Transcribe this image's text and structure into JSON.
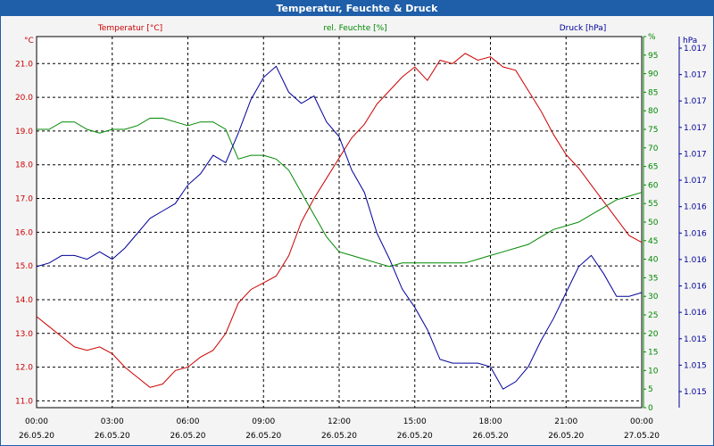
{
  "window": {
    "title": "Temperatur, Feuchte & Druck"
  },
  "colors": {
    "temperature": "#cc0000",
    "humidity": "#008800",
    "pressure": "#000099",
    "titlebar": "#1f5ea8",
    "grid": "#000000"
  },
  "chart_data": {
    "type": "line",
    "title": "Temperatur, Feuchte & Druck",
    "grid": true,
    "x": {
      "ticks": [
        {
          "time": "00:00",
          "date": "26.05.20"
        },
        {
          "time": "03:00",
          "date": "26.05.20"
        },
        {
          "time": "06:00",
          "date": "26.05.20"
        },
        {
          "time": "09:00",
          "date": "26.05.20"
        },
        {
          "time": "12:00",
          "date": "26.05.20"
        },
        {
          "time": "15:00",
          "date": "26.05.20"
        },
        {
          "time": "18:00",
          "date": "26.05.20"
        },
        {
          "time": "21:00",
          "date": "26.05.20"
        },
        {
          "time": "00:00",
          "date": "27.05.20"
        }
      ],
      "range_hours": [
        0,
        24
      ]
    },
    "axes": {
      "temperature": {
        "unit": "°C",
        "label": "Temperatur [°C]",
        "ylim": [
          10.8,
          21.8
        ],
        "ticks": [
          "11.0",
          "12.0",
          "13.0",
          "14.0",
          "15.0",
          "16.0",
          "17.0",
          "18.0",
          "19.0",
          "20.0",
          "21.0"
        ]
      },
      "humidity": {
        "unit": "%",
        "label": "rel. Feuchte [%]",
        "ylim": [
          0,
          100
        ],
        "ticks": [
          "0",
          "5",
          "10",
          "15",
          "20",
          "25",
          "30",
          "35",
          "40",
          "45",
          "50",
          "55",
          "60",
          "65",
          "70",
          "75",
          "80",
          "85",
          "90",
          "95",
          "%"
        ]
      },
      "pressure": {
        "unit": "hPa",
        "label": "Druck [hPa]",
        "ticks": [
          "1.015",
          "1.015",
          "1.015",
          "1.016",
          "1.016",
          "1.016",
          "1.016",
          "1.016",
          "1.017",
          "1.017",
          "1.017",
          "1.017",
          "1.017",
          "1.017"
        ]
      }
    },
    "series": [
      {
        "name": "Temperatur [°C]",
        "axis": "temperature",
        "hours": [
          0,
          0.5,
          1,
          1.5,
          2,
          2.5,
          3,
          3.5,
          4,
          4.5,
          5,
          5.5,
          6,
          6.5,
          7,
          7.5,
          8,
          8.5,
          9,
          9.5,
          10,
          10.5,
          11,
          11.5,
          12,
          12.5,
          13,
          13.5,
          14,
          14.5,
          15,
          15.5,
          16,
          16.5,
          17,
          17.5,
          18,
          18.5,
          19,
          19.5,
          20,
          20.5,
          21,
          21.5,
          22,
          22.5,
          23,
          23.5,
          24
        ],
        "values": [
          13.5,
          13.2,
          12.9,
          12.6,
          12.5,
          12.6,
          12.4,
          12.0,
          11.7,
          11.4,
          11.5,
          11.9,
          12.0,
          12.3,
          12.5,
          13.0,
          13.9,
          14.3,
          14.5,
          14.7,
          15.3,
          16.3,
          17.0,
          17.6,
          18.2,
          18.8,
          19.2,
          19.8,
          20.2,
          20.6,
          20.9,
          20.5,
          21.1,
          21.0,
          21.3,
          21.1,
          21.2,
          20.9,
          20.8,
          20.2,
          19.6,
          18.9,
          18.3,
          17.9,
          17.4,
          16.9,
          16.4,
          15.9,
          15.7
        ]
      },
      {
        "name": "rel. Feuchte [%]",
        "axis": "humidity",
        "hours": [
          0,
          0.5,
          1,
          1.5,
          2,
          2.5,
          3,
          3.5,
          4,
          4.5,
          5,
          5.5,
          6,
          6.5,
          7,
          7.5,
          8,
          8.5,
          9,
          9.5,
          10,
          10.5,
          11,
          11.5,
          12,
          12.5,
          13,
          13.5,
          14,
          14.5,
          15,
          15.5,
          16,
          16.5,
          17,
          17.5,
          18,
          18.5,
          19,
          19.5,
          20,
          20.5,
          21,
          21.5,
          22,
          22.5,
          23,
          23.5,
          24
        ],
        "values": [
          75,
          75,
          77,
          77,
          75,
          74,
          75,
          75,
          76,
          78,
          78,
          77,
          76,
          77,
          77,
          75,
          67,
          68,
          68,
          67,
          64,
          58,
          52,
          46,
          42,
          41,
          40,
          39,
          38,
          39,
          39,
          39,
          39,
          39,
          39,
          40,
          41,
          42,
          43,
          44,
          46,
          48,
          49,
          50,
          52,
          54,
          56,
          57,
          58
        ]
      },
      {
        "name": "Druck [hPa]",
        "axis": "pressure",
        "hours": [
          0,
          0.5,
          1,
          1.5,
          2,
          2.5,
          3,
          3.5,
          4,
          4.5,
          5,
          5.5,
          6,
          6.5,
          7,
          7.5,
          8,
          8.5,
          9,
          9.5,
          10,
          10.5,
          11,
          11.5,
          12,
          12.5,
          13,
          13.5,
          14,
          14.5,
          15,
          15.5,
          16,
          16.5,
          17,
          17.5,
          18,
          18.5,
          19,
          19.5,
          20,
          20.5,
          21,
          21.5,
          22,
          22.5,
          23,
          23.5,
          24
        ],
        "plot_fraction_from_bottom": [
          0.38,
          0.39,
          0.41,
          0.41,
          0.4,
          0.42,
          0.4,
          0.43,
          0.47,
          0.51,
          0.53,
          0.55,
          0.6,
          0.63,
          0.68,
          0.66,
          0.74,
          0.83,
          0.89,
          0.92,
          0.85,
          0.82,
          0.84,
          0.77,
          0.73,
          0.64,
          0.58,
          0.47,
          0.4,
          0.32,
          0.27,
          0.21,
          0.13,
          0.12,
          0.12,
          0.12,
          0.11,
          0.05,
          0.07,
          0.11,
          0.18,
          0.24,
          0.31,
          0.38,
          0.41,
          0.36,
          0.3,
          0.3,
          0.31
        ]
      }
    ]
  }
}
